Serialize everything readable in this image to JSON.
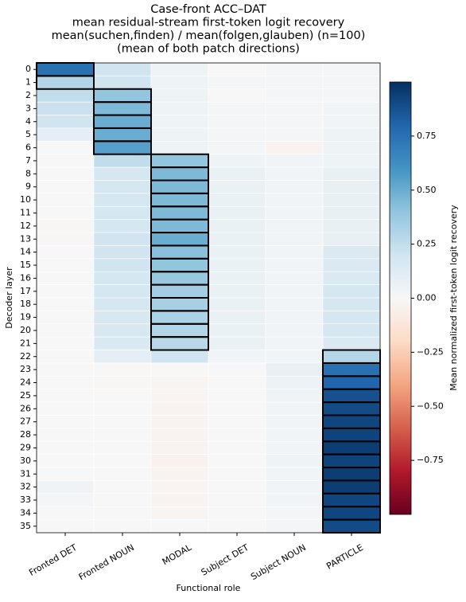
{
  "chart_data": {
    "type": "heatmap",
    "title": [
      "Case-front ACC–DAT",
      "mean residual-stream first-token logit recovery",
      "mean(suchen,finden) / mean(folgen,glauben) (n=100)",
      "(mean of both patch directions)"
    ],
    "x_label": "Functional role",
    "y_label": "Decoder layer",
    "colorbar_label": "Mean normalized first-token logit recovery",
    "colormap": "RdBu",
    "categories": [
      "Fronted DET",
      "Fronted NOUN",
      "MODAL",
      "Subject DET",
      "Subject NOUN",
      "PARTICLE"
    ],
    "rows": [
      "0",
      "1",
      "2",
      "3",
      "4",
      "5",
      "6",
      "7",
      "8",
      "9",
      "10",
      "11",
      "12",
      "13",
      "14",
      "15",
      "16",
      "17",
      "18",
      "19",
      "20",
      "21",
      "22",
      "23",
      "24",
      "25",
      "26",
      "27",
      "28",
      "29",
      "30",
      "31",
      "32",
      "33",
      "34",
      "35"
    ],
    "boxed_col": [
      0,
      0,
      1,
      1,
      1,
      1,
      1,
      2,
      2,
      2,
      2,
      2,
      2,
      2,
      2,
      2,
      2,
      2,
      2,
      2,
      2,
      2,
      5,
      5,
      5,
      5,
      5,
      5,
      5,
      5,
      5,
      5,
      5,
      5,
      5,
      5
    ],
    "values": [
      [
        0.75,
        0.2,
        0.05,
        0.0,
        0.02,
        0.02
      ],
      [
        0.3,
        0.2,
        0.05,
        0.02,
        0.02,
        0.02
      ],
      [
        0.25,
        0.4,
        0.05,
        0.0,
        0.02,
        0.02
      ],
      [
        0.22,
        0.45,
        0.05,
        0.02,
        0.02,
        0.03
      ],
      [
        0.2,
        0.5,
        0.05,
        0.02,
        0.02,
        0.03
      ],
      [
        0.1,
        0.5,
        0.05,
        0.02,
        0.02,
        0.05
      ],
      [
        0.0,
        0.55,
        0.05,
        0.02,
        -0.03,
        0.05
      ],
      [
        0.0,
        0.25,
        0.4,
        0.05,
        0.03,
        0.05
      ],
      [
        0.0,
        0.18,
        0.45,
        0.07,
        0.03,
        0.08
      ],
      [
        0.0,
        0.18,
        0.45,
        0.07,
        0.03,
        0.08
      ],
      [
        0.0,
        0.18,
        0.45,
        0.07,
        0.03,
        0.08
      ],
      [
        0.0,
        0.18,
        0.45,
        0.07,
        0.03,
        0.08
      ],
      [
        -0.01,
        0.18,
        0.45,
        0.07,
        0.03,
        0.08
      ],
      [
        -0.01,
        0.2,
        0.5,
        0.07,
        0.03,
        0.08
      ],
      [
        0.0,
        0.2,
        0.42,
        0.07,
        0.03,
        0.15
      ],
      [
        0.0,
        0.2,
        0.4,
        0.07,
        0.03,
        0.15
      ],
      [
        0.0,
        0.18,
        0.38,
        0.07,
        0.03,
        0.15
      ],
      [
        0.0,
        0.18,
        0.35,
        0.07,
        0.03,
        0.18
      ],
      [
        0.0,
        0.18,
        0.33,
        0.07,
        0.03,
        0.18
      ],
      [
        0.0,
        0.17,
        0.32,
        0.07,
        0.03,
        0.18
      ],
      [
        0.0,
        0.17,
        0.3,
        0.07,
        0.03,
        0.18
      ],
      [
        0.0,
        0.16,
        0.28,
        0.07,
        0.03,
        0.15
      ],
      [
        0.0,
        0.1,
        0.2,
        0.03,
        0.03,
        0.3
      ],
      [
        0.0,
        0.0,
        0.0,
        0.0,
        0.08,
        0.75
      ],
      [
        0.0,
        -0.01,
        -0.02,
        0.0,
        0.06,
        0.8
      ],
      [
        0.0,
        0.0,
        -0.02,
        0.0,
        0.04,
        0.88
      ],
      [
        0.0,
        0.0,
        -0.03,
        0.0,
        0.03,
        0.9
      ],
      [
        0.0,
        0.0,
        -0.03,
        0.0,
        0.03,
        0.92
      ],
      [
        0.0,
        0.0,
        -0.03,
        0.0,
        0.03,
        0.93
      ],
      [
        0.0,
        0.0,
        -0.03,
        0.0,
        0.03,
        0.95
      ],
      [
        0.0,
        0.0,
        -0.04,
        0.0,
        0.05,
        0.93
      ],
      [
        0.0,
        0.0,
        -0.03,
        0.0,
        0.03,
        0.95
      ],
      [
        0.04,
        0.0,
        -0.02,
        0.0,
        0.03,
        0.95
      ],
      [
        0.02,
        0.0,
        -0.03,
        0.0,
        0.03,
        0.92
      ],
      [
        0.0,
        0.0,
        -0.02,
        0.0,
        0.02,
        0.92
      ],
      [
        0.0,
        0.0,
        0.0,
        0.0,
        0.02,
        0.9
      ]
    ],
    "zlim": [
      -1,
      1
    ],
    "zticks": [
      {
        "value": -0.75,
        "label": "−0.75"
      },
      {
        "value": -0.5,
        "label": "−0.50"
      },
      {
        "value": -0.25,
        "label": "−0.25"
      },
      {
        "value": 0,
        "label": "0.00"
      },
      {
        "value": 0.25,
        "label": "0.25"
      },
      {
        "value": 0.5,
        "label": "0.50"
      },
      {
        "value": 0.75,
        "label": "0.75"
      }
    ]
  }
}
